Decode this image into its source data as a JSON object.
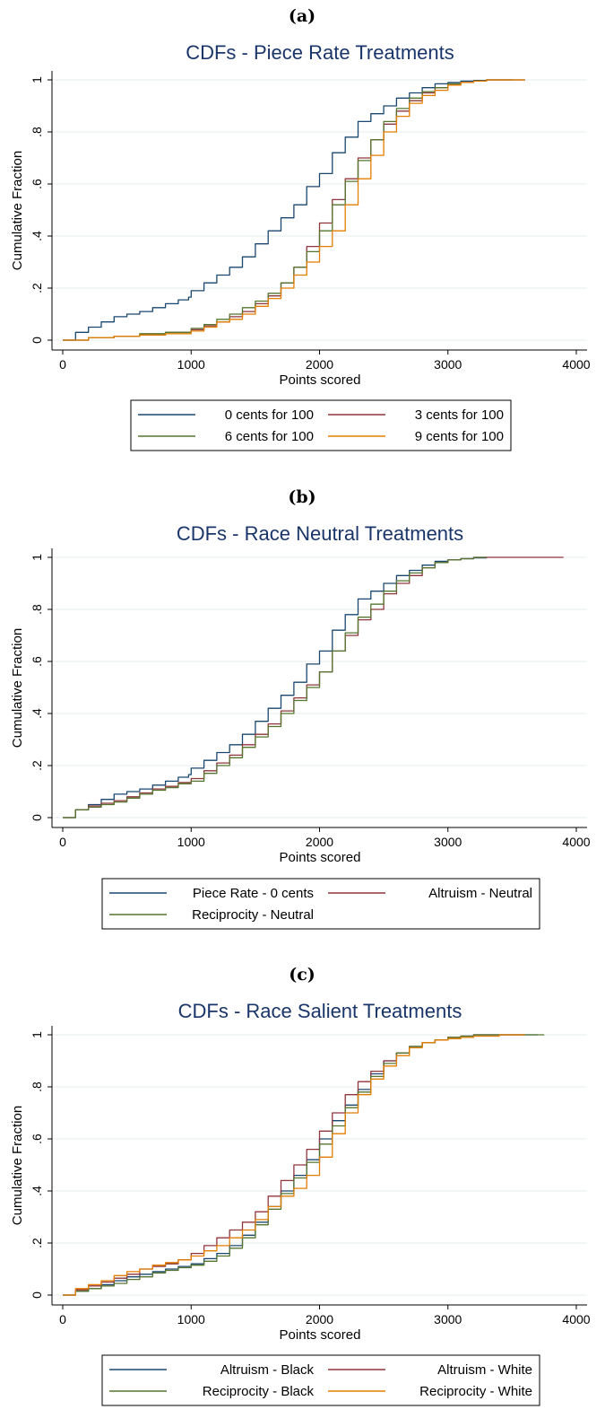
{
  "chart_data": [
    {
      "panel": "(a)",
      "type": "line",
      "title": "CDFs - Piece Rate Treatments",
      "xlabel": "Points scored",
      "ylabel": "Cumulative Fraction",
      "xlim": [
        0,
        4000
      ],
      "ylim": [
        0,
        1
      ],
      "xticks": [
        0,
        1000,
        2000,
        3000,
        4000
      ],
      "xtick_labels": [
        "0",
        "1000",
        "2000",
        "3000",
        "4000"
      ],
      "yticks": [
        0,
        0.2,
        0.4,
        0.6,
        0.8,
        1
      ],
      "ytick_labels": [
        "0",
        ".2",
        ".4",
        ".6",
        ".8",
        "1"
      ],
      "grid": true,
      "legend_position": "bottom",
      "legend_columns": 2,
      "series": [
        {
          "name": "0 cents for 100",
          "color": "#1a476f",
          "x": [
            0,
            100,
            200,
            300,
            400,
            500,
            600,
            700,
            800,
            900,
            980,
            1000,
            1100,
            1200,
            1300,
            1400,
            1500,
            1600,
            1700,
            1800,
            1900,
            2000,
            2100,
            2200,
            2300,
            2400,
            2500,
            2600,
            2700,
            2800,
            2900,
            3000,
            3100,
            3200,
            3300,
            3400,
            3500
          ],
          "y": [
            0,
            0.03,
            0.05,
            0.07,
            0.09,
            0.1,
            0.11,
            0.125,
            0.14,
            0.155,
            0.165,
            0.19,
            0.22,
            0.25,
            0.28,
            0.32,
            0.37,
            0.42,
            0.47,
            0.52,
            0.59,
            0.64,
            0.72,
            0.78,
            0.84,
            0.87,
            0.9,
            0.93,
            0.95,
            0.97,
            0.985,
            0.99,
            0.995,
            0.998,
            1,
            1,
            1
          ]
        },
        {
          "name": "3 cents for 100",
          "color": "#90353b",
          "x": [
            0,
            200,
            400,
            600,
            800,
            1000,
            1100,
            1200,
            1300,
            1400,
            1500,
            1600,
            1700,
            1800,
            1900,
            2000,
            2100,
            2200,
            2300,
            2400,
            2500,
            2600,
            2700,
            2800,
            2900,
            3000,
            3100,
            3200,
            3300,
            3400,
            3500,
            3600
          ],
          "y": [
            0,
            0.01,
            0.015,
            0.02,
            0.03,
            0.04,
            0.055,
            0.07,
            0.09,
            0.11,
            0.14,
            0.17,
            0.22,
            0.28,
            0.36,
            0.45,
            0.54,
            0.62,
            0.7,
            0.77,
            0.83,
            0.88,
            0.92,
            0.95,
            0.97,
            0.98,
            0.99,
            0.995,
            1,
            1,
            1,
            1
          ]
        },
        {
          "name": "6 cents for 100",
          "color": "#55752f",
          "x": [
            0,
            200,
            400,
            600,
            800,
            1000,
            1100,
            1200,
            1300,
            1400,
            1500,
            1600,
            1700,
            1800,
            1900,
            2000,
            2100,
            2200,
            2300,
            2400,
            2500,
            2600,
            2700,
            2800,
            2900,
            3000,
            3100,
            3200,
            3300,
            3400,
            3500,
            3600
          ],
          "y": [
            0,
            0.01,
            0.015,
            0.025,
            0.03,
            0.045,
            0.06,
            0.08,
            0.1,
            0.125,
            0.15,
            0.18,
            0.22,
            0.28,
            0.34,
            0.42,
            0.52,
            0.61,
            0.69,
            0.77,
            0.84,
            0.89,
            0.93,
            0.955,
            0.97,
            0.985,
            0.99,
            0.995,
            1,
            1,
            1,
            1
          ]
        },
        {
          "name": "9 cents for 100",
          "color": "#e37e00",
          "x": [
            0,
            200,
            400,
            600,
            800,
            1000,
            1100,
            1200,
            1300,
            1400,
            1500,
            1600,
            1700,
            1800,
            1900,
            2000,
            2100,
            2200,
            2300,
            2400,
            2500,
            2600,
            2700,
            2800,
            2900,
            3000,
            3100,
            3200,
            3300,
            3400,
            3500,
            3600
          ],
          "y": [
            0,
            0.01,
            0.015,
            0.02,
            0.025,
            0.035,
            0.05,
            0.07,
            0.08,
            0.1,
            0.13,
            0.16,
            0.2,
            0.25,
            0.3,
            0.36,
            0.42,
            0.52,
            0.62,
            0.71,
            0.8,
            0.86,
            0.91,
            0.94,
            0.96,
            0.98,
            0.99,
            0.995,
            1,
            1,
            1,
            1
          ]
        }
      ]
    },
    {
      "panel": "(b)",
      "type": "line",
      "title": "CDFs - Race Neutral Treatments",
      "xlabel": "Points scored",
      "ylabel": "Cumulative Fraction",
      "xlim": [
        0,
        4000
      ],
      "ylim": [
        0,
        1
      ],
      "xticks": [
        0,
        1000,
        2000,
        3000,
        4000
      ],
      "xtick_labels": [
        "0",
        "1000",
        "2000",
        "3000",
        "4000"
      ],
      "yticks": [
        0,
        0.2,
        0.4,
        0.6,
        0.8,
        1
      ],
      "ytick_labels": [
        "0",
        ".2",
        ".4",
        ".6",
        ".8",
        "1"
      ],
      "grid": true,
      "legend_position": "bottom",
      "legend_columns": 2,
      "series": [
        {
          "name": "Piece Rate - 0 cents",
          "color": "#1a476f",
          "x": [
            0,
            100,
            200,
            300,
            400,
            500,
            600,
            700,
            800,
            900,
            980,
            1000,
            1100,
            1200,
            1300,
            1400,
            1500,
            1600,
            1700,
            1800,
            1900,
            2000,
            2100,
            2200,
            2300,
            2400,
            2500,
            2600,
            2700,
            2800,
            2900,
            3000,
            3100,
            3200,
            3300
          ],
          "y": [
            0,
            0.03,
            0.05,
            0.07,
            0.09,
            0.1,
            0.11,
            0.125,
            0.14,
            0.155,
            0.165,
            0.19,
            0.22,
            0.25,
            0.28,
            0.32,
            0.37,
            0.42,
            0.47,
            0.52,
            0.59,
            0.64,
            0.72,
            0.78,
            0.84,
            0.87,
            0.9,
            0.93,
            0.95,
            0.97,
            0.985,
            0.99,
            0.995,
            0.998,
            1
          ]
        },
        {
          "name": "Altruism - Neutral",
          "color": "#90353b",
          "x": [
            0,
            100,
            200,
            300,
            400,
            500,
            600,
            700,
            800,
            900,
            1000,
            1100,
            1200,
            1300,
            1400,
            1500,
            1600,
            1700,
            1800,
            1900,
            2000,
            2100,
            2200,
            2300,
            2400,
            2500,
            2600,
            2700,
            2800,
            2900,
            3000,
            3100,
            3200,
            3300,
            3500,
            3700,
            3900
          ],
          "y": [
            0,
            0.03,
            0.045,
            0.055,
            0.065,
            0.08,
            0.095,
            0.11,
            0.12,
            0.135,
            0.15,
            0.18,
            0.21,
            0.24,
            0.28,
            0.32,
            0.36,
            0.41,
            0.46,
            0.51,
            0.56,
            0.64,
            0.7,
            0.76,
            0.8,
            0.86,
            0.9,
            0.93,
            0.96,
            0.98,
            0.99,
            0.995,
            1,
            1,
            1,
            1,
            1
          ]
        },
        {
          "name": "Reciprocity - Neutral",
          "color": "#55752f",
          "x": [
            0,
            100,
            200,
            300,
            400,
            500,
            600,
            700,
            800,
            900,
            1000,
            1100,
            1200,
            1300,
            1400,
            1500,
            1600,
            1700,
            1800,
            1900,
            2000,
            2100,
            2200,
            2300,
            2400,
            2500,
            2600,
            2700,
            2800,
            2900,
            3000,
            3100,
            3200,
            3300
          ],
          "y": [
            0,
            0.03,
            0.04,
            0.05,
            0.06,
            0.075,
            0.09,
            0.105,
            0.115,
            0.13,
            0.14,
            0.17,
            0.2,
            0.23,
            0.27,
            0.31,
            0.35,
            0.4,
            0.45,
            0.5,
            0.56,
            0.64,
            0.71,
            0.77,
            0.82,
            0.87,
            0.91,
            0.94,
            0.96,
            0.98,
            0.99,
            0.995,
            1,
            1
          ]
        }
      ]
    },
    {
      "panel": "(c)",
      "type": "line",
      "title": "CDFs - Race Salient Treatments",
      "xlabel": "Points scored",
      "ylabel": "Cumulative Fraction",
      "xlim": [
        0,
        4000
      ],
      "ylim": [
        0,
        1
      ],
      "xticks": [
        0,
        1000,
        2000,
        3000,
        4000
      ],
      "xtick_labels": [
        "0",
        "1000",
        "2000",
        "3000",
        "4000"
      ],
      "yticks": [
        0,
        0.2,
        0.4,
        0.6,
        0.8,
        1
      ],
      "ytick_labels": [
        "0",
        ".2",
        ".4",
        ".6",
        ".8",
        "1"
      ],
      "grid": true,
      "legend_position": "bottom",
      "legend_columns": 2,
      "series": [
        {
          "name": "Altruism - Black",
          "color": "#1a476f",
          "x": [
            0,
            100,
            200,
            300,
            400,
            500,
            600,
            700,
            800,
            900,
            1000,
            1100,
            1200,
            1300,
            1400,
            1500,
            1600,
            1700,
            1800,
            1900,
            2000,
            2100,
            2200,
            2300,
            2400,
            2500,
            2600,
            2700,
            2800,
            2900,
            3000,
            3100,
            3200,
            3400,
            3600,
            3700
          ],
          "y": [
            0,
            0.015,
            0.025,
            0.04,
            0.055,
            0.07,
            0.08,
            0.09,
            0.1,
            0.11,
            0.12,
            0.14,
            0.16,
            0.19,
            0.23,
            0.28,
            0.34,
            0.4,
            0.46,
            0.52,
            0.6,
            0.67,
            0.73,
            0.79,
            0.85,
            0.9,
            0.93,
            0.955,
            0.97,
            0.98,
            0.99,
            0.995,
            1,
            1,
            1,
            1
          ]
        },
        {
          "name": "Altruism - White",
          "color": "#90353b",
          "x": [
            0,
            100,
            200,
            300,
            400,
            500,
            600,
            700,
            800,
            900,
            1000,
            1100,
            1200,
            1300,
            1400,
            1500,
            1600,
            1700,
            1800,
            1900,
            2000,
            2100,
            2200,
            2300,
            2400,
            2500,
            2600,
            2700,
            2800,
            2900,
            3000,
            3100,
            3200,
            3400,
            3600
          ],
          "y": [
            0,
            0.02,
            0.035,
            0.05,
            0.065,
            0.08,
            0.1,
            0.11,
            0.12,
            0.135,
            0.16,
            0.19,
            0.22,
            0.25,
            0.28,
            0.32,
            0.38,
            0.44,
            0.5,
            0.56,
            0.63,
            0.7,
            0.77,
            0.82,
            0.86,
            0.9,
            0.93,
            0.955,
            0.97,
            0.98,
            0.99,
            0.995,
            1,
            1,
            1
          ]
        },
        {
          "name": "Reciprocity - Black",
          "color": "#55752f",
          "x": [
            0,
            100,
            200,
            300,
            400,
            500,
            600,
            700,
            800,
            900,
            1000,
            1100,
            1200,
            1300,
            1400,
            1500,
            1600,
            1700,
            1800,
            1900,
            2000,
            2100,
            2200,
            2300,
            2400,
            2500,
            2600,
            2700,
            2800,
            2900,
            3000,
            3100,
            3200,
            3400,
            3600,
            3750
          ],
          "y": [
            0,
            0.015,
            0.025,
            0.035,
            0.045,
            0.06,
            0.07,
            0.085,
            0.095,
            0.105,
            0.115,
            0.13,
            0.15,
            0.18,
            0.22,
            0.27,
            0.33,
            0.39,
            0.45,
            0.51,
            0.58,
            0.65,
            0.72,
            0.78,
            0.84,
            0.89,
            0.93,
            0.955,
            0.97,
            0.98,
            0.99,
            0.995,
            1,
            1,
            1,
            1
          ]
        },
        {
          "name": "Reciprocity - White",
          "color": "#e37e00",
          "x": [
            0,
            100,
            200,
            300,
            400,
            500,
            600,
            700,
            800,
            900,
            1000,
            1100,
            1200,
            1300,
            1400,
            1500,
            1600,
            1700,
            1800,
            1900,
            2000,
            2100,
            2200,
            2300,
            2400,
            2500,
            2600,
            2700,
            2800,
            2900,
            3000,
            3100,
            3200,
            3400,
            3600
          ],
          "y": [
            0,
            0.025,
            0.04,
            0.055,
            0.075,
            0.09,
            0.1,
            0.115,
            0.125,
            0.135,
            0.15,
            0.17,
            0.19,
            0.22,
            0.25,
            0.29,
            0.34,
            0.38,
            0.41,
            0.46,
            0.53,
            0.62,
            0.7,
            0.77,
            0.83,
            0.88,
            0.92,
            0.95,
            0.97,
            0.98,
            0.985,
            0.99,
            0.995,
            1,
            1
          ]
        }
      ]
    }
  ]
}
